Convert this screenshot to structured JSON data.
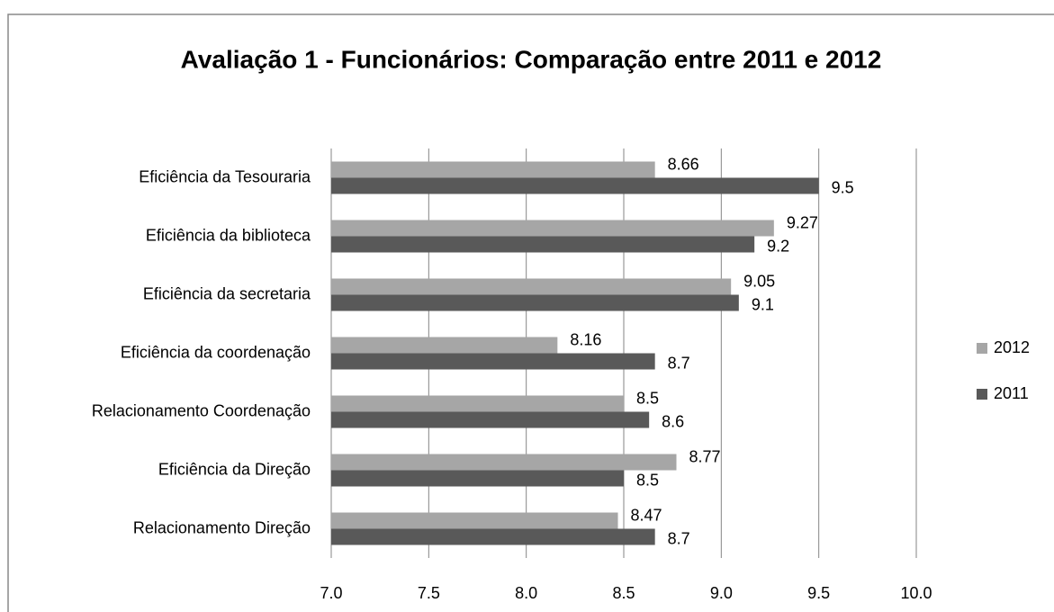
{
  "chart_data": {
    "type": "bar",
    "orientation": "horizontal",
    "title": "Avaliação 1 - Funcionários: Comparação entre 2011 e 2012",
    "categories": [
      "Eficiência da Tesouraria",
      "Eficiência  da biblioteca",
      "Eficiência  da secretaria",
      "Eficiência  da coordenação",
      "Relacionamento Coordenação",
      "Eficiência da Direção",
      "Relacionamento Direção"
    ],
    "series": [
      {
        "name": "2012",
        "color": "#a6a6a6",
        "values": [
          8.66,
          9.27,
          9.05,
          8.16,
          8.5,
          8.77,
          8.47
        ]
      },
      {
        "name": "2011",
        "color": "#595959",
        "values": [
          9.5,
          9.17,
          9.09,
          8.66,
          8.63,
          8.5,
          8.66
        ],
        "value_labels": [
          "9.5",
          "9.2",
          "9.1",
          "8.7",
          "8.6",
          "8.5",
          "8.7"
        ]
      }
    ],
    "xlim": [
      7,
      10
    ],
    "xticks": [
      {
        "value": 7,
        "label": "7.0"
      },
      7.5,
      {
        "value": 8,
        "label": "8.0"
      },
      8.5,
      {
        "value": 9,
        "label": "9.0"
      },
      9.5,
      {
        "value": 10,
        "label": "10.0"
      }
    ],
    "grid": true,
    "legend": "right"
  }
}
